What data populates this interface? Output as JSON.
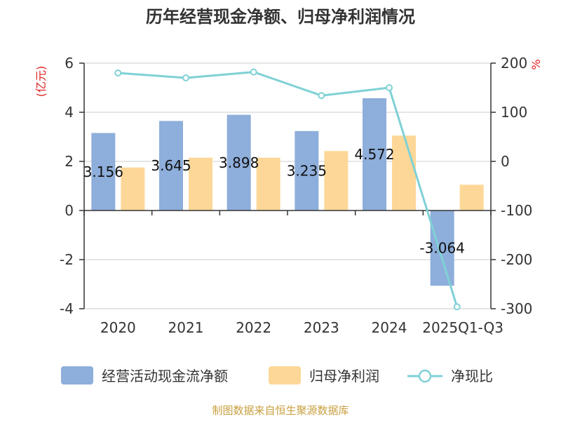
{
  "title": "历年经营现金净额、归母净利润情况",
  "source": "制图数据来自恒生聚源数据库",
  "left_unit": "(亿元)",
  "right_unit": "%",
  "colors": {
    "bar1": "#8eaedb",
    "bar2": "#fdd797",
    "line": "#7fd1d6"
  },
  "legend": [
    {
      "label": "经营活动现金流净额",
      "marker": "bar-blue"
    },
    {
      "label": "归母净利润",
      "marker": "bar-orange"
    },
    {
      "label": "净现比",
      "marker": "line-circle"
    }
  ],
  "chart_data": {
    "type": "bar",
    "categories": [
      "2020",
      "2021",
      "2022",
      "2023",
      "2024",
      "2025Q1-Q3"
    ],
    "series": [
      {
        "name": "经营活动现金流净额",
        "axis": "left",
        "values": [
          3.156,
          3.645,
          3.898,
          3.235,
          4.572,
          -3.064
        ],
        "labels": [
          "3.156",
          "3.645",
          "3.898",
          "3.235",
          "4.572",
          "-3.064"
        ]
      },
      {
        "name": "归母净利润",
        "axis": "left",
        "values": [
          1.75,
          2.15,
          2.15,
          2.42,
          3.05,
          1.05
        ]
      },
      {
        "name": "净现比",
        "type": "line",
        "axis": "right",
        "values": [
          180,
          170,
          182,
          134,
          150,
          -296
        ]
      }
    ],
    "y_left": {
      "min": -4,
      "max": 6,
      "ticks": [
        6,
        4,
        2,
        0,
        -2,
        -4
      ],
      "label": "(亿元)"
    },
    "y_right": {
      "min": -300,
      "max": 200,
      "ticks": [
        200,
        100,
        0,
        -100,
        -200,
        -300
      ],
      "label": "%"
    },
    "grid": true,
    "legend_position": "bottom"
  }
}
